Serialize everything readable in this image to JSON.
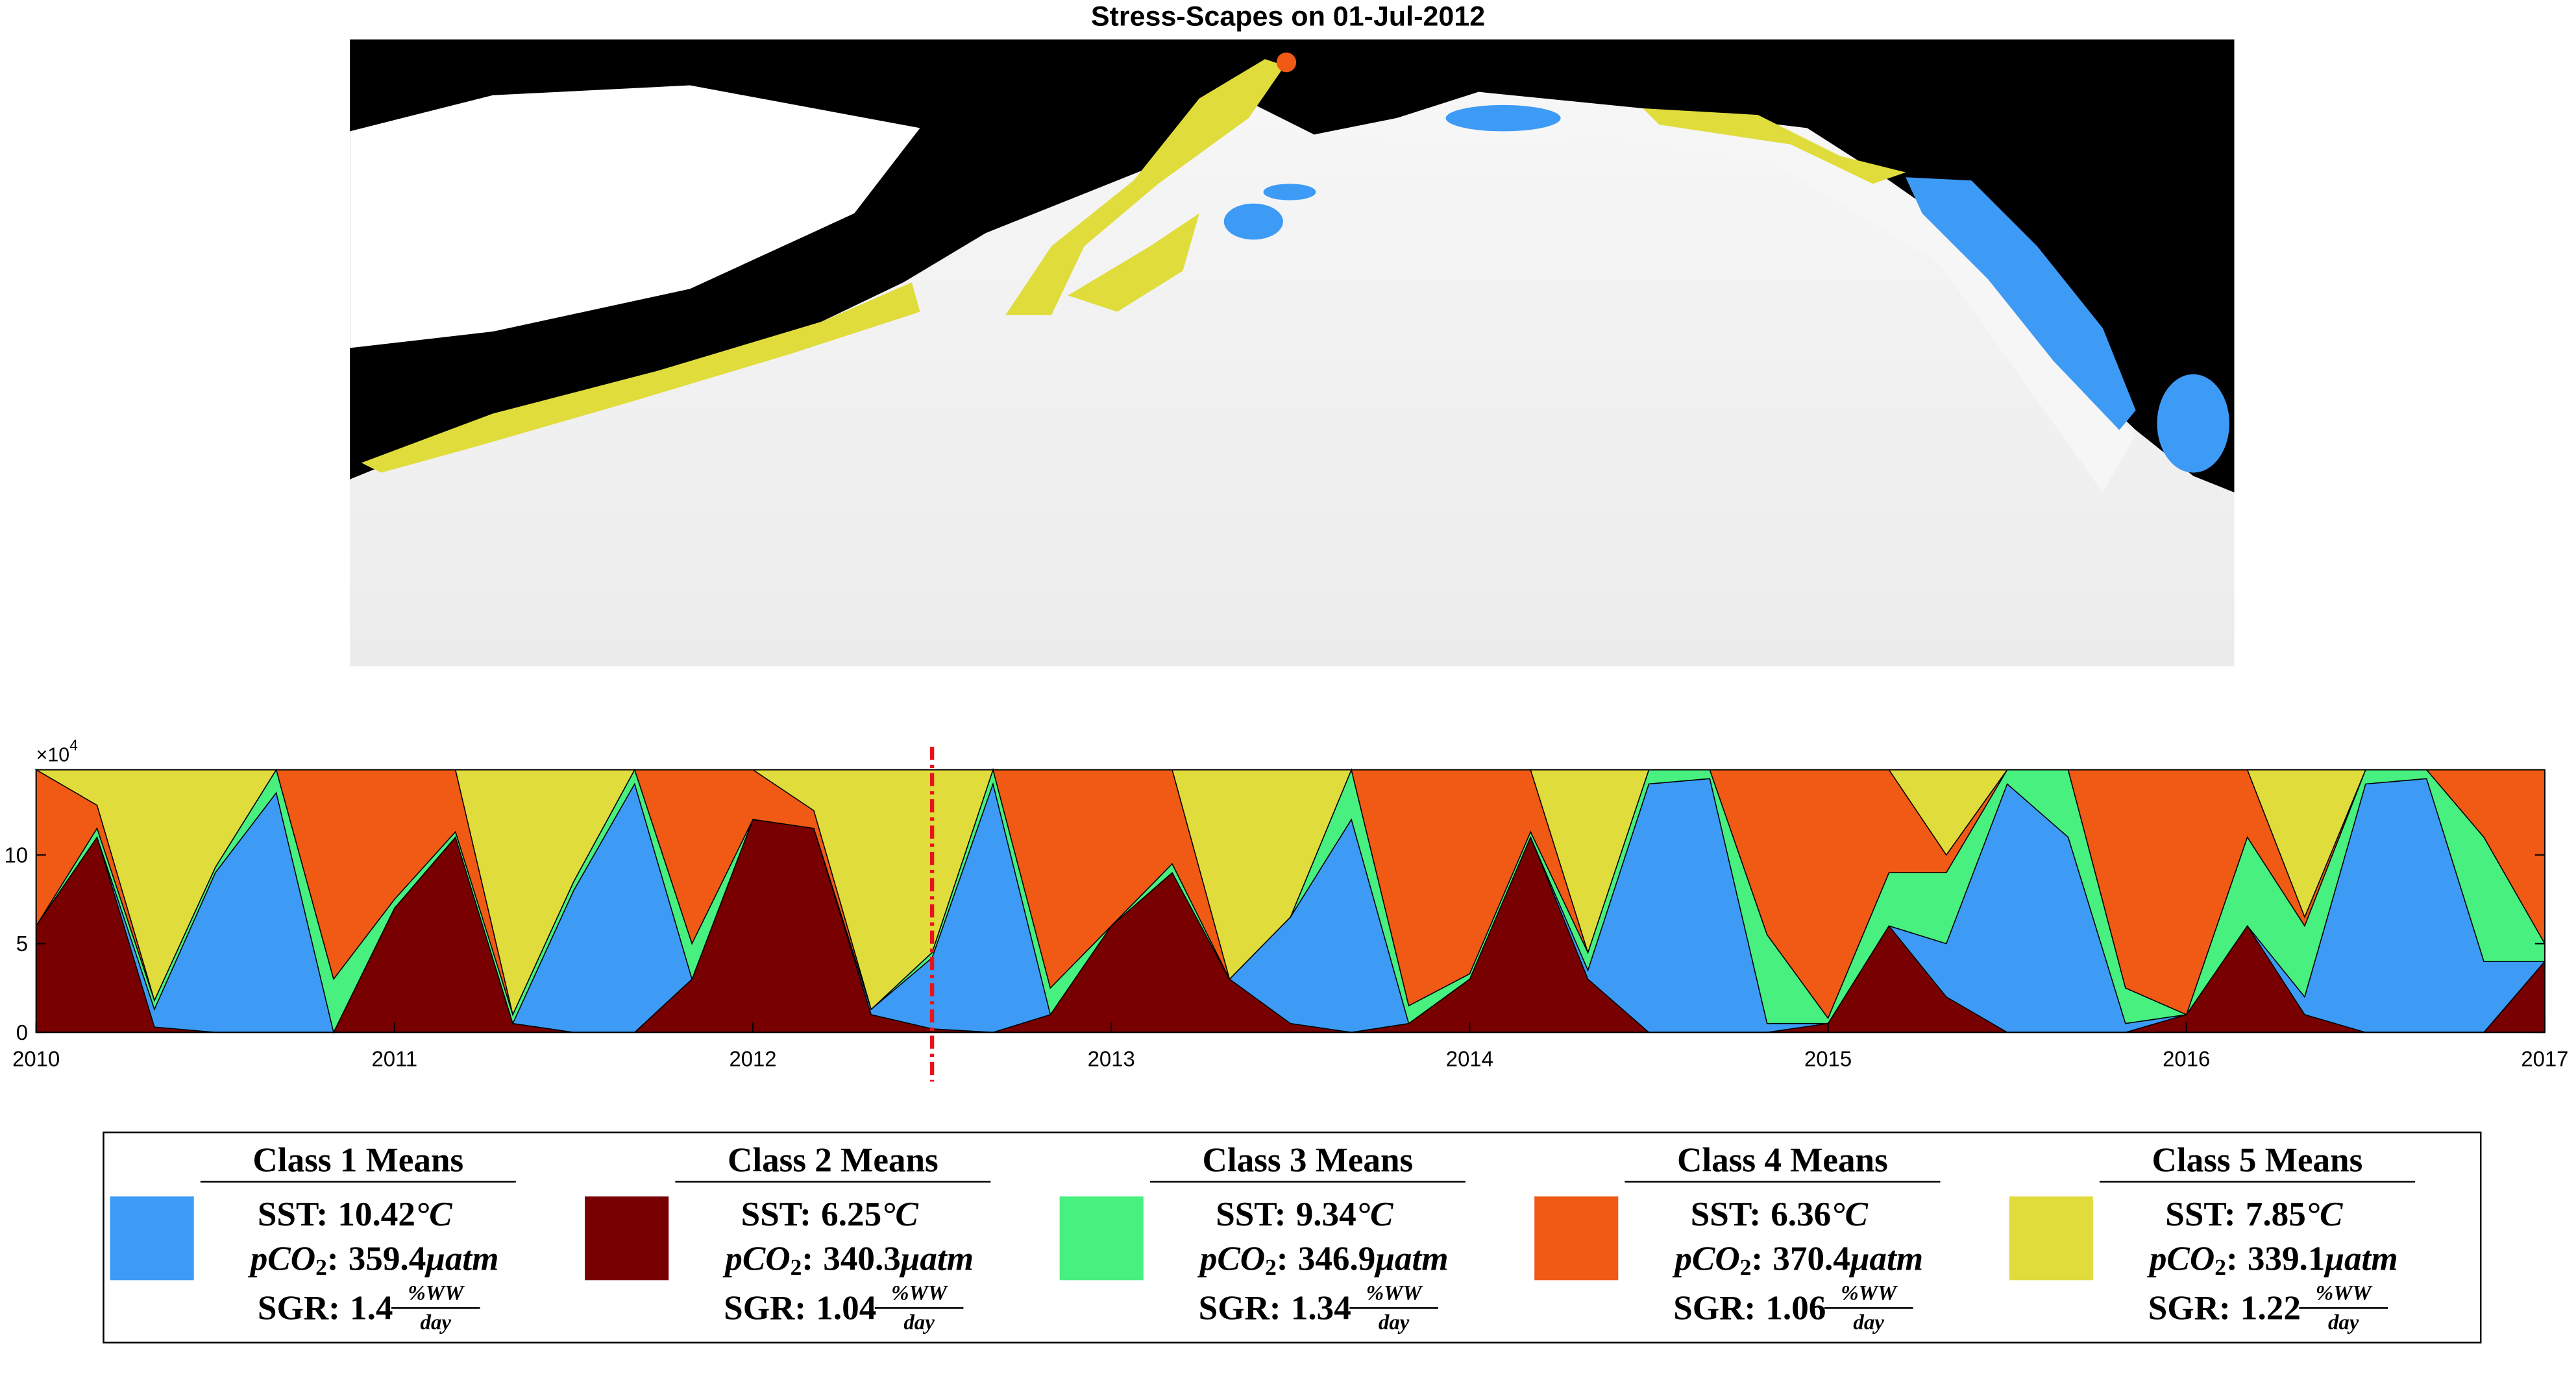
{
  "map": {
    "title": "Stress-Scapes on 01-Jul-2012"
  },
  "chart_data": {
    "type": "area",
    "stacked": true,
    "x": [
      2010,
      2010.17,
      2010.33,
      2010.5,
      2010.67,
      2010.83,
      2011,
      2011.17,
      2011.33,
      2011.5,
      2011.67,
      2011.83,
      2012,
      2012.17,
      2012.33,
      2012.5,
      2012.67,
      2012.83,
      2013,
      2013.17,
      2013.33,
      2013.5,
      2013.67,
      2013.83,
      2014,
      2014.17,
      2014.33,
      2014.5,
      2014.67,
      2014.83,
      2015,
      2015.17,
      2015.33,
      2015.5,
      2015.67,
      2015.83,
      2016,
      2016.17,
      2016.33,
      2016.5,
      2016.67,
      2016.83,
      2017
    ],
    "xlim": [
      2010,
      2017
    ],
    "xticks": [
      2010,
      2011,
      2012,
      2013,
      2014,
      2015,
      2016,
      2017
    ],
    "ylim": [
      0,
      14.8
    ],
    "yticks": [
      0,
      5,
      10
    ],
    "y_multiplier": {
      "base": "×10",
      "exponent": "4"
    },
    "marker_x": 2012.5,
    "marker_color": "#e8141c",
    "stack_order": [
      1,
      0,
      2,
      3,
      4
    ],
    "legend_text": {
      "sst_label": "SST:",
      "sst_unit": "°C",
      "pco2_label": "pCO",
      "pco2_sub": "2",
      "pco2_colon": ":",
      "pco2_unit": "μatm",
      "sgr_label": "SGR:",
      "sgr_num": "%WW",
      "sgr_den": "day"
    },
    "series": [
      {
        "name": "Class 1 Means",
        "color": "#3d9bf6",
        "sst": 10.42,
        "pco2": 359.4,
        "sgr": 1.4,
        "values": [
          0,
          0,
          1,
          9,
          13.5,
          0,
          0,
          0,
          0,
          8,
          14,
          0,
          0,
          0,
          0.3,
          4,
          14,
          0,
          0,
          0,
          0,
          6,
          12,
          0,
          0,
          0,
          0.5,
          14,
          14.3,
          0.5,
          0,
          0,
          3,
          14,
          11,
          0.5,
          0,
          0,
          1,
          14,
          14.3,
          4,
          0
        ]
      },
      {
        "name": "Class 2 Means",
        "color": "#780000",
        "sst": 6.25,
        "pco2": 340.3,
        "sgr": 1.04,
        "values": [
          6,
          11,
          0.3,
          0,
          0,
          0,
          7,
          11,
          0.5,
          0,
          0,
          3,
          12,
          11.5,
          1,
          0.2,
          0,
          1,
          6,
          9,
          3,
          0.5,
          0,
          0.5,
          3,
          11,
          3,
          0,
          0,
          0,
          0.5,
          6,
          2,
          0,
          0,
          0,
          1,
          6,
          1,
          0,
          0,
          0,
          4
        ]
      },
      {
        "name": "Class 3 Means",
        "color": "#47f07f",
        "sst": 9.34,
        "pco2": 346.9,
        "sgr": 1.34,
        "values": [
          0,
          0.5,
          0.5,
          0.3,
          1.3,
          3,
          0.5,
          0.3,
          0.5,
          0.5,
          0.8,
          2,
          0,
          0,
          0,
          0.3,
          0.8,
          1.5,
          0,
          0.5,
          0,
          0,
          2.8,
          1,
          0.3,
          0.3,
          1,
          0.8,
          0.5,
          5,
          0.3,
          3,
          4,
          0.8,
          3.8,
          2,
          0,
          5,
          4,
          0.8,
          0.5,
          7,
          1
        ]
      },
      {
        "name": "Class 4 Means",
        "color": "#f05a14",
        "sst": 6.36,
        "pco2": 370.4,
        "sgr": 1.06,
        "values": [
          8.8,
          1.3,
          0,
          0,
          0,
          11.8,
          7.3,
          3.5,
          0,
          0,
          0,
          9.8,
          2.8,
          1,
          0,
          0,
          0,
          12.3,
          8.8,
          5.3,
          0,
          0,
          0,
          13.3,
          11.5,
          3.5,
          0,
          0,
          0,
          9.3,
          14,
          5.8,
          1,
          0,
          0,
          12.3,
          13.8,
          3.8,
          0.5,
          0,
          0,
          3.8,
          9.8
        ]
      },
      {
        "name": "Class 5 Means",
        "color": "#e0dc3c",
        "sst": 7.85,
        "pco2": 339.1,
        "sgr": 1.22,
        "values": [
          0,
          2,
          13,
          5.5,
          0,
          0,
          0,
          0,
          13.8,
          6.3,
          0,
          0,
          0,
          2.3,
          13.5,
          10.3,
          0,
          0,
          0,
          0,
          11.8,
          8.3,
          0,
          0,
          0,
          0,
          10.3,
          0,
          0,
          0,
          0,
          0,
          4.8,
          0,
          0,
          0,
          0,
          0,
          8.3,
          0,
          0,
          0,
          0
        ]
      }
    ]
  }
}
